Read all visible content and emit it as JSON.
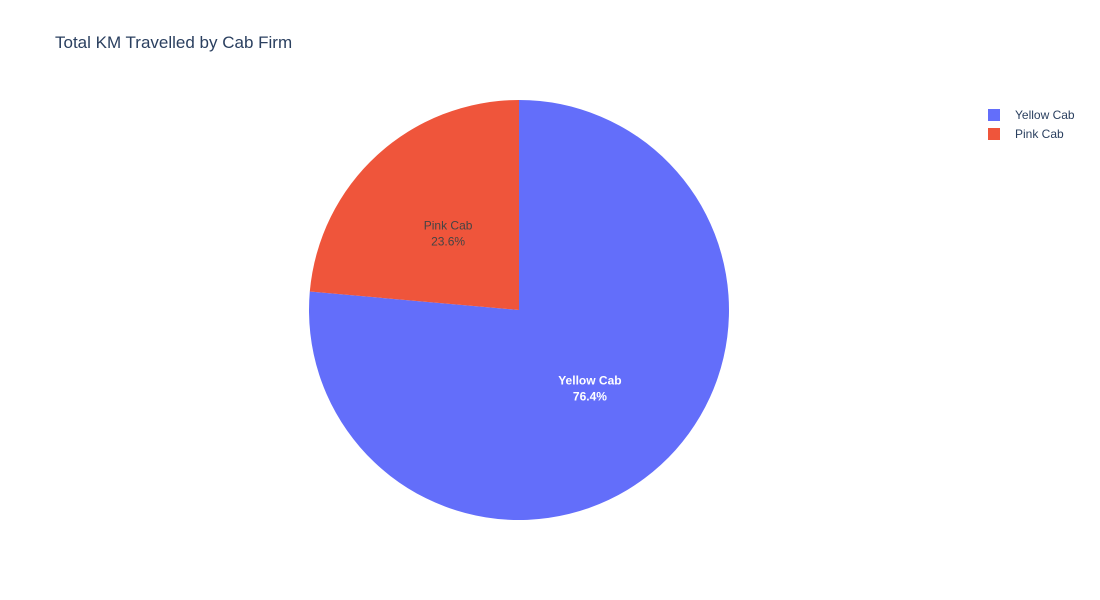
{
  "chart_data": {
    "type": "pie",
    "title": "Total KM Travelled by Cab Firm",
    "slices": [
      {
        "label": "Yellow Cab",
        "percent_text": "76.4%",
        "value": 76.4,
        "color": "#636efa",
        "text_color": "#ffffff"
      },
      {
        "label": "Pink Cab",
        "percent_text": "23.6%",
        "value": 23.6,
        "color": "#ef553b",
        "text_color": "#444444"
      }
    ],
    "legend": {
      "placement": "top-right",
      "items": [
        {
          "label": "Yellow Cab",
          "color": "#636efa"
        },
        {
          "label": "Pink Cab",
          "color": "#ef553b"
        }
      ]
    }
  }
}
